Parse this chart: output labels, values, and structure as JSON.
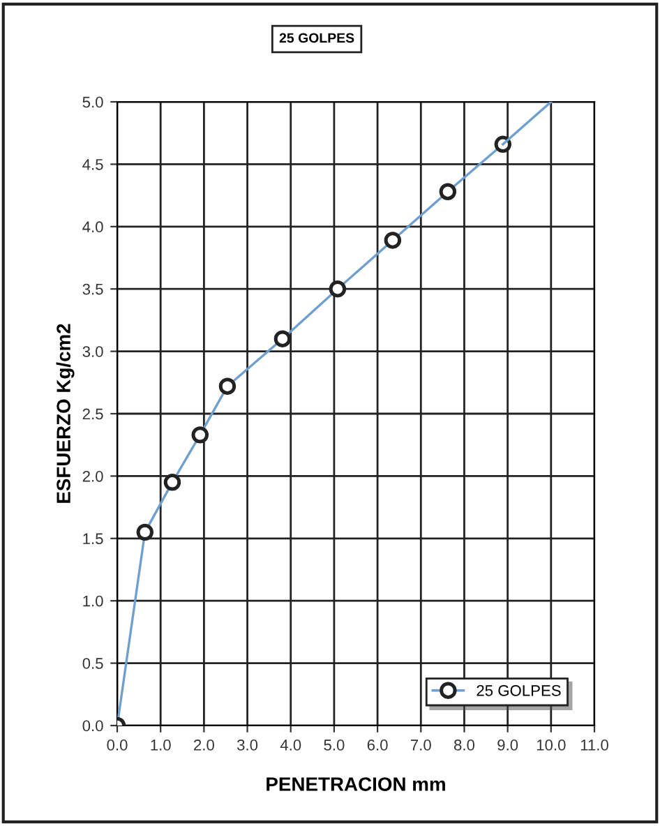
{
  "chart_data": {
    "type": "line",
    "title": "25 GOLPES",
    "xlabel": "PENETRACION mm",
    "ylabel": "ESFUERZO Kg/cm2",
    "xlim": [
      0,
      11
    ],
    "ylim": [
      0,
      5
    ],
    "xticks": [
      {
        "value": 0,
        "label": "0.0"
      },
      {
        "value": 1,
        "label": "1.0"
      },
      {
        "value": 2,
        "label": "2.0"
      },
      {
        "value": 3,
        "label": "3.0"
      },
      {
        "value": 4,
        "label": "4.0"
      },
      {
        "value": 5,
        "label": "5.0"
      },
      {
        "value": 6,
        "label": "6.0"
      },
      {
        "value": 7,
        "label": "7.0"
      },
      {
        "value": 8,
        "label": "8.0"
      },
      {
        "value": 9,
        "label": "9.0"
      },
      {
        "value": 10,
        "label": "10.0"
      },
      {
        "value": 11,
        "label": "11.0"
      }
    ],
    "yticks": [
      {
        "value": 0,
        "label": "0.0"
      },
      {
        "value": 0.5,
        "label": "0.5"
      },
      {
        "value": 1,
        "label": "1.0"
      },
      {
        "value": 1.5,
        "label": "1.5"
      },
      {
        "value": 2,
        "label": "2.0"
      },
      {
        "value": 2.5,
        "label": "2.5"
      },
      {
        "value": 3,
        "label": "3.0"
      },
      {
        "value": 3.5,
        "label": "3.5"
      },
      {
        "value": 4,
        "label": "4.0"
      },
      {
        "value": 4.5,
        "label": "4.5"
      },
      {
        "value": 5,
        "label": "5.0"
      }
    ],
    "grid": true,
    "legend": "bottom right",
    "marker": "circle",
    "series": [
      {
        "name": "25 GOLPES",
        "color": "#6f9fd0",
        "x": [
          0,
          0.64,
          1.27,
          1.91,
          2.54,
          3.81,
          5.08,
          6.35,
          7.62,
          8.89
        ],
        "values": [
          0,
          1.55,
          1.95,
          2.33,
          2.72,
          3.1,
          3.5,
          3.89,
          4.28,
          4.66
        ]
      },
      {
        "type": "line",
        "marker": "none",
        "color": "#6f9fd0",
        "x": [
          8.89,
          10.0
        ],
        "values": [
          4.66,
          5.0
        ]
      }
    ]
  }
}
